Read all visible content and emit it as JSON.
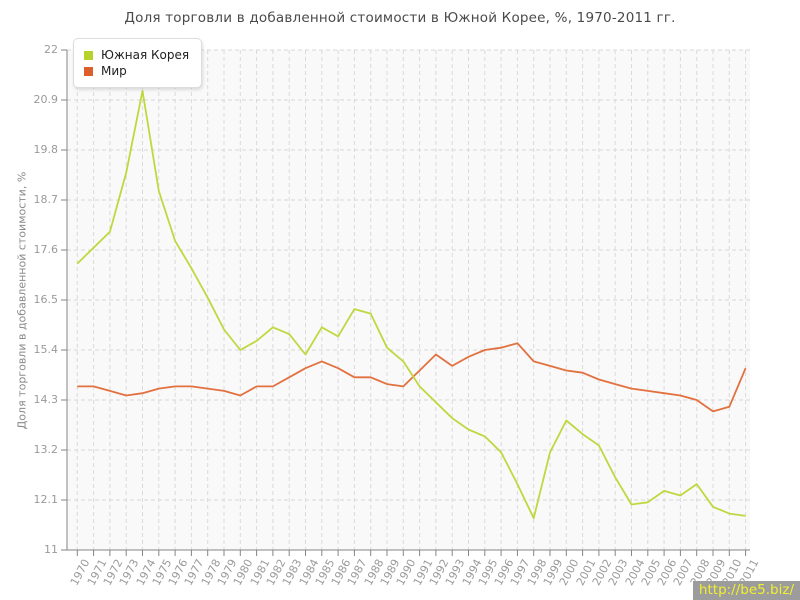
{
  "watermark": "http://be5.biz/",
  "legend": {
    "items": [
      {
        "label": "Южная Корея",
        "color": "#b5d32c"
      },
      {
        "label": "Мир",
        "color": "#dc5e2a"
      }
    ]
  },
  "chart_data": {
    "type": "line",
    "title": "Доля торговли в добавленной стоимости в Южной Корее, %, 1970-2011 гг.",
    "xlabel": "",
    "ylabel": "Доля торговли в добавленной стоимости, %",
    "x": [
      1970,
      1971,
      1972,
      1973,
      1974,
      1975,
      1976,
      1977,
      1978,
      1979,
      1980,
      1981,
      1982,
      1983,
      1984,
      1985,
      1986,
      1987,
      1988,
      1989,
      1990,
      1991,
      1992,
      1993,
      1994,
      1995,
      1996,
      1997,
      1998,
      1999,
      2000,
      2001,
      2002,
      2003,
      2004,
      2005,
      2006,
      2007,
      2008,
      2009,
      2010,
      2011
    ],
    "series": [
      {
        "name": "Южная Корея",
        "color": "#c1d73f",
        "values": [
          17.3,
          17.65,
          18.0,
          19.3,
          21.1,
          18.9,
          17.8,
          17.2,
          16.55,
          15.85,
          15.4,
          15.6,
          15.9,
          15.75,
          15.3,
          15.9,
          15.7,
          16.3,
          16.2,
          15.45,
          15.15,
          14.6,
          14.25,
          13.9,
          13.65,
          13.5,
          13.15,
          12.45,
          11.7,
          13.15,
          13.85,
          13.55,
          13.3,
          12.6,
          12.0,
          12.05,
          12.3,
          12.2,
          12.45,
          11.95,
          11.8,
          11.75
        ]
      },
      {
        "name": "Мир",
        "color": "#e2713f",
        "values": [
          14.6,
          14.6,
          14.5,
          14.4,
          14.45,
          14.55,
          14.6,
          14.6,
          14.55,
          14.5,
          14.4,
          14.6,
          14.6,
          14.8,
          15.0,
          15.15,
          15.0,
          14.8,
          14.8,
          14.65,
          14.6,
          14.95,
          15.3,
          15.05,
          15.25,
          15.4,
          15.45,
          15.55,
          15.15,
          15.05,
          14.95,
          14.9,
          14.75,
          14.65,
          14.55,
          14.5,
          14.45,
          14.4,
          14.3,
          14.05,
          14.15,
          15.0
        ]
      }
    ],
    "ylim": [
      11,
      22
    ],
    "yticks": [
      11,
      12.1,
      13.2,
      14.3,
      15.4,
      16.5,
      17.6,
      18.7,
      19.8,
      20.9,
      22
    ],
    "grid": true,
    "legend_position": "top-left"
  }
}
